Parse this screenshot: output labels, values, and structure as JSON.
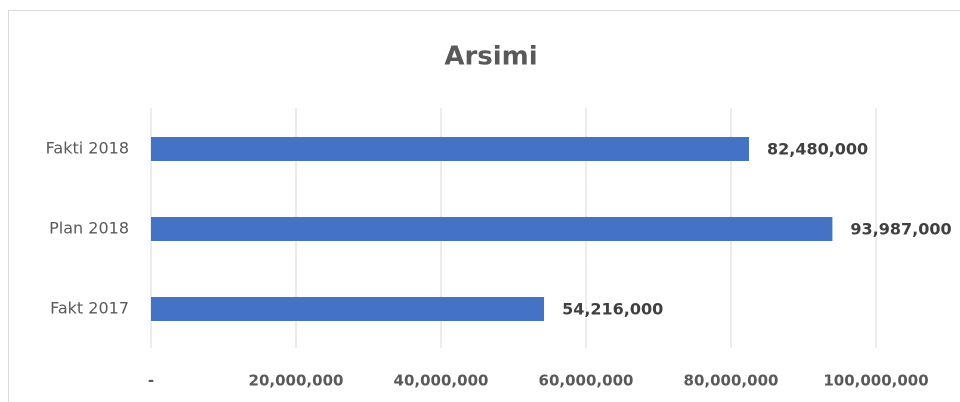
{
  "chart_data": {
    "type": "bar",
    "orientation": "horizontal",
    "title": "Arsimi",
    "categories": [
      "Fakti 2018",
      "Plan 2018",
      "Fakt 2017"
    ],
    "values": [
      82480000,
      93987000,
      54216000
    ],
    "value_labels": [
      "82,480,000",
      "93,987,000",
      "54,216,000"
    ],
    "color": "#4472c4",
    "xlim": [
      0,
      100000000
    ],
    "xticks": [
      {
        "value": 0,
        "label": "-"
      },
      {
        "value": 20000000,
        "label": "20,000,000"
      },
      {
        "value": 40000000,
        "label": "40,000,000"
      },
      {
        "value": 60000000,
        "label": "60,000,000"
      },
      {
        "value": 80000000,
        "label": "80,000,000"
      },
      {
        "value": 100000000,
        "label": "100,000,000"
      }
    ],
    "grid": true
  }
}
